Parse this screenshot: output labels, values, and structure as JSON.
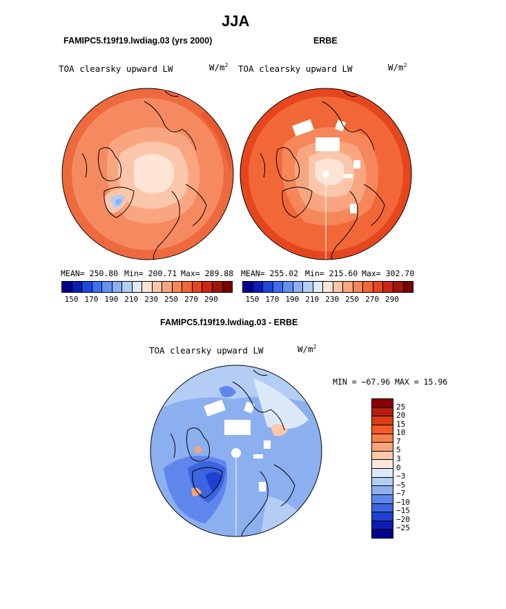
{
  "title": "JJA",
  "left_panel": {
    "case": "FAMIPC5.f19f19.lwdiag.03 (yrs 2000)",
    "variable": "TOA clearsky upward LW",
    "units_base": "W/m",
    "units_exp": "2",
    "mean": "MEAN= 250.80",
    "min": "Min= 200.71",
    "max": "Max= 289.88"
  },
  "right_panel": {
    "case": "ERBE",
    "variable": "TOA clearsky upward LW",
    "units_base": "W/m",
    "units_exp": "2",
    "mean": "MEAN= 255.02",
    "min": "Min= 215.60",
    "max": "Max= 302.70"
  },
  "colorbar_top": {
    "colors": [
      "#00008b",
      "#0a1eb4",
      "#1e46dc",
      "#3c6ef0",
      "#6491f0",
      "#8caff5",
      "#b4cdf5",
      "#dceafa",
      "#fde4d4",
      "#fcc6aa",
      "#f9a680",
      "#f5875a",
      "#f26737",
      "#e6461e",
      "#c82814",
      "#a0140a",
      "#780000"
    ],
    "labels": [
      "150",
      "170",
      "190",
      "210",
      "230",
      "250",
      "270",
      "290"
    ]
  },
  "diff_panel": {
    "case": "FAMIPC5.f19f19.lwdiag.03 - ERBE",
    "variable": "TOA clearsky upward LW",
    "units_base": "W/m",
    "units_exp": "2",
    "min_max": "MIN = −67.96 MAX =  15.96"
  },
  "colorbar_diff": {
    "colors": [
      "#8b0000",
      "#b41e0a",
      "#dc3c14",
      "#f05a28",
      "#f5824b",
      "#f9a57a",
      "#fcc8a8",
      "#fde8da",
      "#dce9fa",
      "#b4cdf5",
      "#8caff0",
      "#5f87eb",
      "#3c64e1",
      "#1e41d2",
      "#0a1eb4",
      "#00008b"
    ],
    "labels": [
      "25",
      "20",
      "15",
      "10",
      "7",
      "5",
      "3",
      "0",
      "−3",
      "−5",
      "−7",
      "−10",
      "−15",
      "−20",
      "−25"
    ]
  }
}
